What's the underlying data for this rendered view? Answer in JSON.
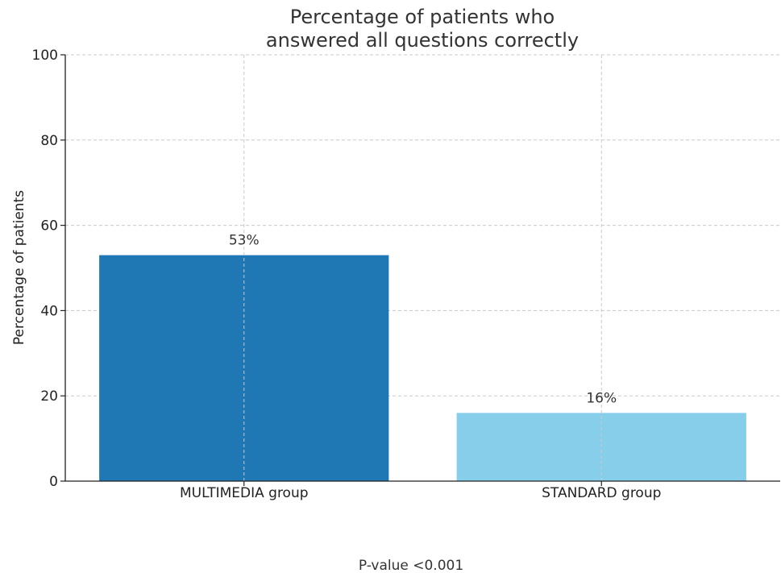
{
  "chart_data": {
    "type": "bar",
    "title_lines": [
      "Percentage of patients who",
      "answered all questions correctly"
    ],
    "ylabel": "Percentage of patients",
    "xlabel": "",
    "categories": [
      "MULTIMEDIA group",
      "STANDARD group"
    ],
    "values": [
      53,
      16
    ],
    "data_labels": [
      "53%",
      "16%"
    ],
    "colors": [
      "#1f77b4",
      "#87ceeb"
    ],
    "ylim": [
      0,
      100
    ],
    "yticks": [
      0,
      20,
      40,
      60,
      80,
      100
    ],
    "grid": true,
    "note": "P-value <0.001"
  }
}
